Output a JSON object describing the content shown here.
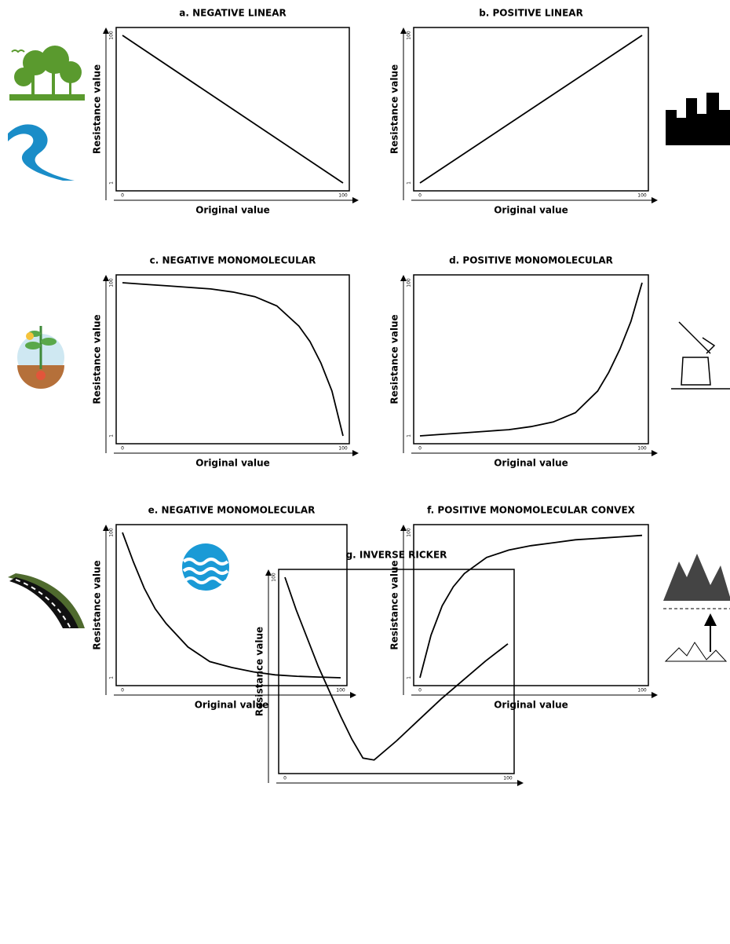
{
  "chart_data": [
    {
      "type": "line",
      "title": "a. NEGATIVE LINEAR",
      "xlabel": "Original value",
      "ylabel": "Resistance value",
      "x": [
        0,
        100
      ],
      "series": [
        {
          "color": "#000000",
          "values": [
            100,
            1
          ]
        }
      ],
      "xlim": [
        0,
        100
      ],
      "ylim": [
        1,
        100
      ],
      "xticks": [
        0,
        100
      ],
      "yticks": [
        1,
        100
      ]
    },
    {
      "type": "line",
      "title": "b. POSITIVE LINEAR",
      "xlabel": "Original value",
      "ylabel": "Resistance value",
      "x": [
        0,
        100
      ],
      "series": [
        {
          "color": "#000000",
          "values": [
            1,
            100
          ]
        }
      ],
      "xlim": [
        0,
        100
      ],
      "ylim": [
        1,
        100
      ],
      "xticks": [
        0,
        100
      ],
      "yticks": [
        1,
        100
      ]
    },
    {
      "type": "line",
      "title": "c. NEGATIVE MONOMOLECULAR",
      "xlabel": "Original value",
      "ylabel": "Resistance value",
      "x": [
        0,
        10,
        20,
        30,
        40,
        50,
        60,
        70,
        80,
        85,
        90,
        95,
        100
      ],
      "series": [
        {
          "color": "#000000",
          "values": [
            100,
            99,
            98,
            97,
            96,
            94,
            91,
            85,
            72,
            62,
            48,
            30,
            1
          ]
        }
      ],
      "xlim": [
        0,
        100
      ],
      "ylim": [
        1,
        100
      ],
      "xticks": [
        0,
        100
      ],
      "yticks": [
        1,
        100
      ]
    },
    {
      "type": "line",
      "title": "d. POSITIVE MONOMOLECULAR",
      "xlabel": "Original value",
      "ylabel": "Resistance value",
      "x": [
        0,
        10,
        20,
        30,
        40,
        50,
        60,
        70,
        80,
        85,
        90,
        95,
        100
      ],
      "series": [
        {
          "color": "#000000",
          "values": [
            1,
            2,
            3,
            4,
            5,
            7,
            10,
            16,
            30,
            42,
            57,
            75,
            100
          ]
        }
      ],
      "xlim": [
        0,
        100
      ],
      "ylim": [
        1,
        100
      ],
      "xticks": [
        0,
        100
      ],
      "yticks": [
        1,
        100
      ]
    },
    {
      "type": "line",
      "title": "e. NEGATIVE MONOMOLECULAR",
      "xlabel": "Original value",
      "ylabel": "Resistance value",
      "x": [
        0,
        5,
        10,
        15,
        20,
        30,
        40,
        50,
        60,
        70,
        80,
        90,
        100
      ],
      "series": [
        {
          "color": "#000000",
          "values": [
            100,
            80,
            62,
            48,
            38,
            22,
            12,
            8,
            5,
            3,
            2,
            1.5,
            1
          ]
        }
      ],
      "xlim": [
        0,
        100
      ],
      "ylim": [
        1,
        100
      ],
      "xticks": [
        0,
        100
      ],
      "yticks": [
        1,
        100
      ]
    },
    {
      "type": "line",
      "title": "f. POSITIVE MONOMOLECULAR CONVEX",
      "xlabel": "Original value",
      "ylabel": "Resistance value",
      "x": [
        0,
        5,
        10,
        15,
        20,
        30,
        40,
        50,
        60,
        70,
        80,
        90,
        100
      ],
      "series": [
        {
          "color": "#000000",
          "values": [
            1,
            30,
            50,
            63,
            72,
            83,
            88,
            91,
            93,
            95,
            96,
            97,
            98
          ]
        }
      ],
      "xlim": [
        0,
        100
      ],
      "ylim": [
        1,
        100
      ],
      "xticks": [
        0,
        100
      ],
      "yticks": [
        1,
        100
      ]
    },
    {
      "type": "line",
      "title": "g. INVERSE RICKER",
      "ylabel": "Resistance value",
      "x": [
        0,
        5,
        10,
        15,
        20,
        25,
        30,
        35,
        40,
        50,
        60,
        70,
        80,
        90,
        100
      ],
      "series": [
        {
          "color": "#000000",
          "values": [
            100,
            83,
            68,
            53,
            40,
            27,
            15,
            5,
            4,
            14,
            25,
            36,
            46,
            56,
            65
          ]
        }
      ],
      "xlim": [
        0,
        100
      ],
      "ylim": [
        1,
        100
      ],
      "xticks": [
        0,
        100
      ],
      "yticks": [
        100
      ]
    }
  ]
}
